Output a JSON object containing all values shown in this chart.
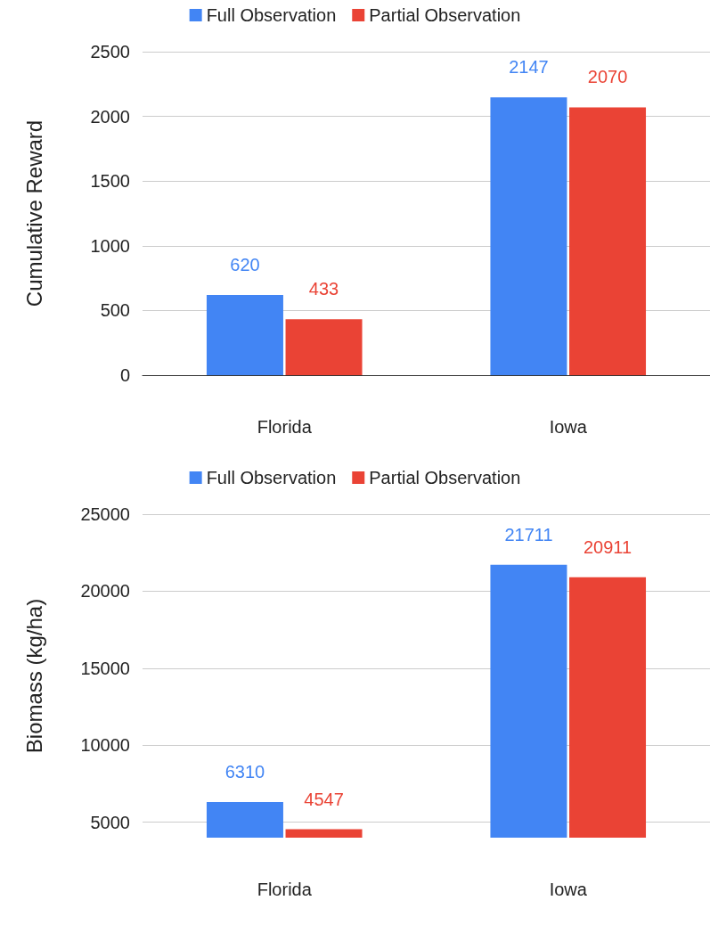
{
  "chart_data": [
    {
      "type": "bar",
      "ylabel": "Cumulative Reward",
      "categories": [
        "Florida",
        "Iowa"
      ],
      "series": [
        {
          "name": "Full Observation",
          "color": "#4285f4",
          "values": [
            620,
            2147
          ]
        },
        {
          "name": "Partial Observation",
          "color": "#ea4335",
          "values": [
            433,
            2070
          ]
        }
      ],
      "ylim": [
        0,
        2500
      ],
      "yticks": [
        0,
        500,
        1000,
        1500,
        2000,
        2500
      ],
      "grid": "y",
      "legend": "top",
      "data_labels": true
    },
    {
      "type": "bar",
      "ylabel": "Biomass (kg/ha)",
      "categories": [
        "Florida",
        "Iowa"
      ],
      "series": [
        {
          "name": "Full Observation",
          "color": "#4285f4",
          "values": [
            6310,
            21711
          ]
        },
        {
          "name": "Partial Observation",
          "color": "#ea4335",
          "values": [
            4547,
            20911
          ]
        }
      ],
      "ylim": [
        4000,
        25000
      ],
      "yticks": [
        5000,
        10000,
        15000,
        20000,
        25000
      ],
      "grid": "y",
      "legend": "top",
      "data_labels": true
    }
  ]
}
